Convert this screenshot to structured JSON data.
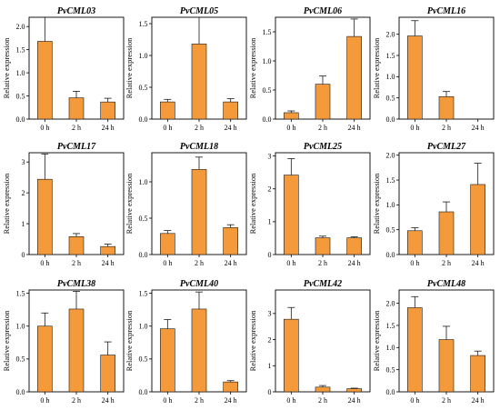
{
  "colors": {
    "bar_fill": "#F49A3B",
    "bar_stroke": "#1a1a1a",
    "axis": "#000000"
  },
  "chart_data": [
    {
      "type": "bar",
      "title": "PvCML03",
      "ylabel": "Relative expression",
      "categories": [
        "0 h",
        "2 h",
        "24 h"
      ],
      "values": [
        1.68,
        0.46,
        0.37
      ],
      "errors": [
        0.52,
        0.14,
        0.08
      ],
      "ylim": [
        0,
        2.2
      ],
      "yticks": [
        "0.0",
        "0.5",
        "1.0",
        "1.5",
        "2.0"
      ],
      "ytick_values": [
        0,
        0.5,
        1.0,
        1.5,
        2.0
      ]
    },
    {
      "type": "bar",
      "title": "PvCML05",
      "ylabel": "Relative expression",
      "categories": [
        "0 h",
        "2 h",
        "24 h"
      ],
      "values": [
        0.27,
        1.18,
        0.27
      ],
      "errors": [
        0.04,
        0.42,
        0.05
      ],
      "ylim": [
        0,
        1.6
      ],
      "yticks": [
        "0.0",
        "0.5",
        "1.0",
        "1.5"
      ],
      "ytick_values": [
        0,
        0.5,
        1.0,
        1.5
      ]
    },
    {
      "type": "bar",
      "title": "PvCML06",
      "ylabel": "Relative expression",
      "categories": [
        "0 h",
        "2 h",
        "24 h"
      ],
      "values": [
        0.11,
        0.6,
        1.42
      ],
      "errors": [
        0.03,
        0.14,
        0.3
      ],
      "ylim": [
        0,
        1.75
      ],
      "yticks": [
        "0.0",
        "0.5",
        "1.0",
        "1.5"
      ],
      "ytick_values": [
        0,
        0.5,
        1.0,
        1.5
      ]
    },
    {
      "type": "bar",
      "title": "PvCML16",
      "ylabel": "Relative expression",
      "categories": [
        "0 h",
        "2 h",
        "24 h"
      ],
      "values": [
        1.96,
        0.53,
        0.0
      ],
      "errors": [
        0.36,
        0.12,
        0.0
      ],
      "ylim": [
        0,
        2.4
      ],
      "yticks": [
        "0.0",
        "0.5",
        "1.0",
        "1.5",
        "2.0"
      ],
      "ytick_values": [
        0,
        0.5,
        1.0,
        1.5,
        2.0
      ]
    },
    {
      "type": "bar",
      "title": "PvCML17",
      "ylabel": "Relative expression",
      "categories": [
        "0 h",
        "2 h",
        "24 h"
      ],
      "values": [
        2.44,
        0.58,
        0.26
      ],
      "errors": [
        0.82,
        0.1,
        0.08
      ],
      "ylim": [
        0,
        3.3
      ],
      "yticks": [
        "0",
        "1",
        "2",
        "3"
      ],
      "ytick_values": [
        0,
        1,
        2,
        3
      ]
    },
    {
      "type": "bar",
      "title": "PvCML18",
      "ylabel": "Relative expression",
      "categories": [
        "0 h",
        "2 h",
        "24 h"
      ],
      "values": [
        0.29,
        1.17,
        0.37
      ],
      "errors": [
        0.04,
        0.17,
        0.04
      ],
      "ylim": [
        0,
        1.4
      ],
      "yticks": [
        "0.0",
        "0.5",
        "1.0"
      ],
      "ytick_values": [
        0,
        0.5,
        1.0
      ]
    },
    {
      "type": "bar",
      "title": "PvCML25",
      "ylabel": "Relative expression",
      "categories": [
        "0 h",
        "2 h",
        "24 h"
      ],
      "values": [
        2.42,
        0.51,
        0.51
      ],
      "errors": [
        0.5,
        0.05,
        0.03
      ],
      "ylim": [
        0,
        3.1
      ],
      "yticks": [
        "0",
        "1",
        "2",
        "3"
      ],
      "ytick_values": [
        0,
        1,
        2,
        3
      ]
    },
    {
      "type": "bar",
      "title": "PvCML27",
      "ylabel": "Relative expression",
      "categories": [
        "0 h",
        "2 h",
        "24 h"
      ],
      "values": [
        0.48,
        0.86,
        1.41
      ],
      "errors": [
        0.06,
        0.2,
        0.43
      ],
      "ylim": [
        0,
        2.05
      ],
      "yticks": [
        "0.0",
        "0.5",
        "1.0",
        "1.5",
        "2.0"
      ],
      "ytick_values": [
        0,
        0.5,
        1.0,
        1.5,
        2.0
      ]
    },
    {
      "type": "bar",
      "title": "PvCML38",
      "ylabel": "Relative expression",
      "categories": [
        "0 h",
        "2 h",
        "24 h"
      ],
      "values": [
        1.0,
        1.26,
        0.56
      ],
      "errors": [
        0.2,
        0.27,
        0.2
      ],
      "ylim": [
        0,
        1.55
      ],
      "yticks": [
        "0.0",
        "0.5",
        "1.0",
        "1.5"
      ],
      "ytick_values": [
        0,
        0.5,
        1.0,
        1.5
      ]
    },
    {
      "type": "bar",
      "title": "PvCML40",
      "ylabel": "Relative expression",
      "categories": [
        "0 h",
        "2 h",
        "24 h"
      ],
      "values": [
        0.96,
        1.26,
        0.15
      ],
      "errors": [
        0.14,
        0.26,
        0.02
      ],
      "ylim": [
        0,
        1.55
      ],
      "yticks": [
        "0.0",
        "0.5",
        "1.0",
        "1.5"
      ],
      "ytick_values": [
        0,
        0.5,
        1.0,
        1.5
      ]
    },
    {
      "type": "bar",
      "title": "PvCML42",
      "ylabel": "Relative expression",
      "categories": [
        "0 h",
        "2 h",
        "24 h"
      ],
      "values": [
        2.78,
        0.18,
        0.12
      ],
      "errors": [
        0.45,
        0.06,
        0.02
      ],
      "ylim": [
        0,
        3.9
      ],
      "yticks": [
        "0",
        "1",
        "2",
        "3"
      ],
      "ytick_values": [
        0,
        1,
        2,
        3
      ]
    },
    {
      "type": "bar",
      "title": "PvCML48",
      "ylabel": "Relative expression",
      "categories": [
        "0 h",
        "2 h",
        "24 h"
      ],
      "values": [
        1.9,
        1.18,
        0.82
      ],
      "errors": [
        0.25,
        0.3,
        0.1
      ],
      "ylim": [
        0,
        2.3
      ],
      "yticks": [
        "0.0",
        "0.5",
        "1.0",
        "1.5",
        "2.0"
      ],
      "ytick_values": [
        0,
        0.5,
        1.0,
        1.5,
        2.0
      ]
    }
  ]
}
